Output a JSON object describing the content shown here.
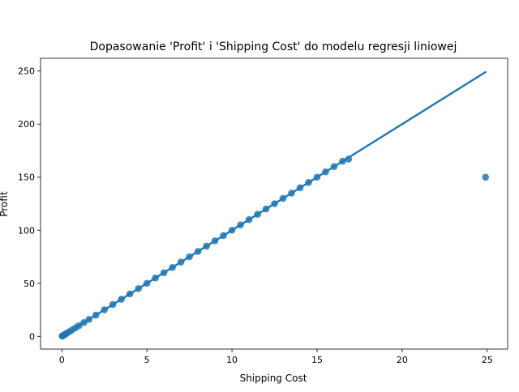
{
  "chart_data": {
    "type": "scatter",
    "title": "Dopasowanie 'Profit' i 'Shipping Cost' do modelu regresji liniowej",
    "xlabel": "Shipping Cost",
    "ylabel": "Profit",
    "xlim": [
      -1.25,
      26.2
    ],
    "ylim": [
      -12,
      262
    ],
    "xticks": [
      0,
      5,
      10,
      15,
      20,
      25
    ],
    "yticks": [
      0,
      50,
      100,
      150,
      200,
      250
    ],
    "grid": false,
    "colors": {
      "points": "#1f77b4",
      "line": "#1f77b4"
    },
    "series": [
      {
        "kind": "scatter",
        "points": [
          [
            0.02,
            0.2
          ],
          [
            0.05,
            0.5
          ],
          [
            0.1,
            1.0
          ],
          [
            0.15,
            1.5
          ],
          [
            0.2,
            2.0
          ],
          [
            0.3,
            3.0
          ],
          [
            0.45,
            4.5
          ],
          [
            0.6,
            6.0
          ],
          [
            0.8,
            8.0
          ],
          [
            1.0,
            10.0
          ],
          [
            1.3,
            13.0
          ],
          [
            1.6,
            16.0
          ],
          [
            2.0,
            20.0
          ],
          [
            2.5,
            25.0
          ],
          [
            3.0,
            30.0
          ],
          [
            3.5,
            35.0
          ],
          [
            4.0,
            40.0
          ],
          [
            4.5,
            45.0
          ],
          [
            5.0,
            50.0
          ],
          [
            5.5,
            55.0
          ],
          [
            6.0,
            60.0
          ],
          [
            6.5,
            65.0
          ],
          [
            7.0,
            70.0
          ],
          [
            7.5,
            75.0
          ],
          [
            8.0,
            80.0
          ],
          [
            8.5,
            85.0
          ],
          [
            9.0,
            90.0
          ],
          [
            9.5,
            95.0
          ],
          [
            10.0,
            100.0
          ],
          [
            10.5,
            105.0
          ],
          [
            11.0,
            110.0
          ],
          [
            11.5,
            115.0
          ],
          [
            12.0,
            120.0
          ],
          [
            12.5,
            125.0
          ],
          [
            13.0,
            130.0
          ],
          [
            13.5,
            135.0
          ],
          [
            14.0,
            140.0
          ],
          [
            14.5,
            145.0
          ],
          [
            15.0,
            150.0
          ],
          [
            15.5,
            155.0
          ],
          [
            16.0,
            160.0
          ],
          [
            16.5,
            165.0
          ],
          [
            16.85,
            167.0
          ],
          [
            24.9,
            150.0
          ]
        ]
      },
      {
        "kind": "regression-line",
        "x": [
          0,
          24.9
        ],
        "y": [
          0,
          249
        ]
      }
    ]
  }
}
